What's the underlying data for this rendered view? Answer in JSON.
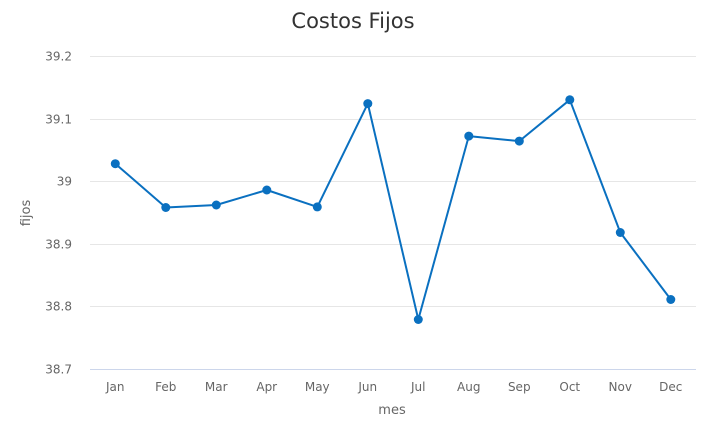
{
  "chart_data": {
    "type": "line",
    "title": "Costos Fijos",
    "xlabel": "mes",
    "ylabel": "fijos",
    "categories": [
      "Jan",
      "Feb",
      "Mar",
      "Apr",
      "May",
      "Jun",
      "Jul",
      "Aug",
      "Sep",
      "Oct",
      "Nov",
      "Dec"
    ],
    "series": [
      {
        "values": [
          39.028,
          38.958,
          38.962,
          38.986,
          38.959,
          39.124,
          38.779,
          39.072,
          39.064,
          39.13,
          38.918,
          38.811
        ]
      }
    ],
    "ylim": [
      38.7,
      39.2
    ],
    "yticks": [
      38.7,
      38.8,
      38.9,
      39,
      39.1,
      39.2
    ],
    "ytick_labels": [
      "38.7",
      "38.8",
      "38.9",
      "39",
      "39.1",
      "39.2"
    ],
    "grid": true,
    "colors": {
      "series": "#0a70c0",
      "grid": "#e6e6e6"
    }
  }
}
